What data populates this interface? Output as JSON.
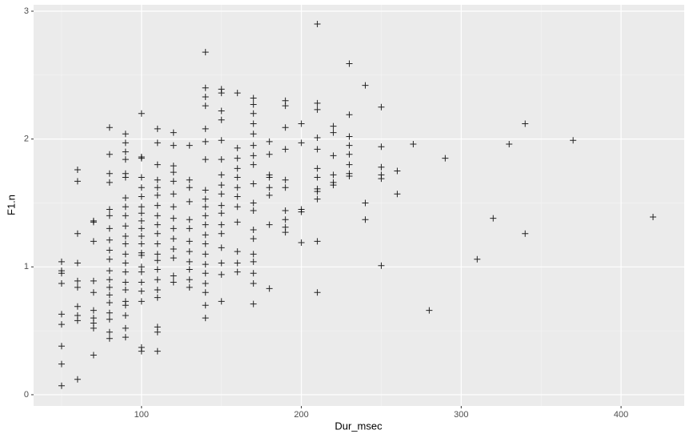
{
  "chart_data": {
    "type": "scatter",
    "x_label": "Dur_msec",
    "y_label": "F1.n",
    "color": "#000000",
    "grid": true,
    "xlim": [
      32.5,
      439.5
    ],
    "ylim": [
      -0.088,
      3.05
    ],
    "xticks": [
      100,
      200,
      300,
      400
    ],
    "yticks": [
      0,
      1,
      2,
      3
    ],
    "x_minor_ticks": [
      50,
      150,
      250,
      350
    ],
    "y_minor_ticks": [
      0.5,
      1.5,
      2.5
    ],
    "x": [
      50,
      50,
      50,
      50,
      50,
      50,
      50,
      50,
      50,
      60,
      60,
      60,
      60,
      60,
      60,
      60,
      60,
      60,
      60,
      70,
      70,
      70,
      70,
      70,
      70,
      70,
      70,
      70,
      70,
      80,
      80,
      80,
      80,
      80,
      80,
      80,
      80,
      80,
      80,
      80,
      80,
      80,
      80,
      80,
      80,
      80,
      80,
      80,
      90,
      90,
      90,
      90,
      90,
      90,
      90,
      90,
      90,
      90,
      90,
      90,
      90,
      90,
      90,
      90,
      90,
      90,
      90,
      90,
      90,
      90,
      100,
      100,
      100,
      100,
      100,
      100,
      100,
      100,
      100,
      100,
      100,
      100,
      100,
      100,
      100,
      100,
      100,
      100,
      100,
      100,
      100,
      110,
      110,
      110,
      110,
      110,
      110,
      110,
      110,
      110,
      110,
      110,
      110,
      110,
      110,
      110,
      110,
      110,
      110,
      110,
      110,
      120,
      120,
      120,
      120,
      120,
      120,
      120,
      120,
      120,
      120,
      120,
      120,
      120,
      120,
      130,
      130,
      130,
      130,
      130,
      130,
      130,
      130,
      130,
      130,
      130,
      130,
      140,
      140,
      140,
      140,
      140,
      140,
      140,
      140,
      140,
      140,
      140,
      140,
      140,
      140,
      140,
      140,
      140,
      140,
      140,
      140,
      140,
      150,
      150,
      150,
      150,
      150,
      150,
      150,
      150,
      150,
      150,
      150,
      150,
      150,
      150,
      150,
      150,
      150,
      160,
      160,
      160,
      160,
      160,
      160,
      160,
      160,
      160,
      160,
      160,
      160,
      170,
      170,
      170,
      170,
      170,
      170,
      170,
      170,
      170,
      170,
      170,
      170,
      170,
      170,
      170,
      170,
      170,
      170,
      180,
      180,
      180,
      180,
      180,
      180,
      180,
      180,
      190,
      190,
      190,
      190,
      190,
      190,
      190,
      190,
      190,
      190,
      200,
      200,
      200,
      200,
      200,
      210,
      210,
      210,
      210,
      210,
      210,
      210,
      210,
      210,
      210,
      210,
      210,
      220,
      220,
      220,
      220,
      220,
      220,
      230,
      230,
      230,
      230,
      230,
      230,
      230,
      230,
      240,
      240,
      240,
      250,
      250,
      250,
      250,
      250,
      250,
      260,
      260,
      270,
      280,
      290,
      310,
      320,
      330,
      340,
      340,
      370,
      420
    ],
    "values": [
      1.04,
      0.97,
      0.95,
      0.87,
      0.63,
      0.55,
      0.38,
      0.24,
      0.07,
      1.76,
      1.67,
      1.26,
      1.03,
      0.89,
      0.84,
      0.69,
      0.62,
      0.58,
      0.12,
      1.36,
      1.35,
      1.2,
      0.89,
      0.8,
      0.66,
      0.6,
      0.56,
      0.52,
      0.31,
      2.09,
      1.88,
      1.73,
      1.66,
      1.45,
      1.4,
      1.3,
      1.21,
      1.13,
      1.06,
      0.97,
      0.9,
      0.84,
      0.78,
      0.72,
      0.64,
      0.59,
      0.49,
      0.44,
      2.04,
      1.97,
      1.9,
      1.84,
      1.73,
      1.7,
      1.54,
      1.47,
      1.4,
      1.32,
      1.24,
      1.18,
      1.1,
      1.03,
      0.96,
      0.88,
      0.82,
      0.73,
      0.7,
      0.62,
      0.52,
      0.45,
      2.2,
      1.86,
      1.85,
      1.7,
      1.62,
      1.55,
      1.47,
      1.42,
      1.36,
      1.3,
      1.24,
      1.18,
      1.11,
      1.09,
      1.0,
      0.96,
      0.88,
      0.81,
      0.73,
      0.37,
      0.34,
      2.08,
      1.97,
      1.8,
      1.68,
      1.62,
      1.56,
      1.48,
      1.4,
      1.33,
      1.26,
      1.18,
      1.1,
      1.05,
      0.98,
      0.9,
      0.82,
      0.76,
      0.53,
      0.49,
      0.34,
      2.05,
      1.95,
      1.79,
      1.74,
      1.67,
      1.57,
      1.47,
      1.38,
      1.3,
      1.22,
      1.14,
      1.07,
      0.93,
      0.88,
      1.95,
      1.68,
      1.62,
      1.51,
      1.37,
      1.3,
      1.2,
      1.12,
      1.04,
      0.98,
      0.9,
      0.84,
      2.68,
      2.4,
      2.33,
      2.26,
      2.08,
      1.98,
      1.84,
      1.6,
      1.53,
      1.47,
      1.4,
      1.33,
      1.25,
      1.18,
      1.1,
      1.02,
      0.95,
      0.87,
      0.8,
      0.7,
      0.6,
      2.39,
      2.36,
      2.22,
      2.15,
      1.99,
      1.84,
      1.72,
      1.64,
      1.57,
      1.48,
      1.42,
      1.33,
      1.26,
      1.15,
      1.03,
      0.94,
      0.73,
      2.36,
      1.93,
      1.85,
      1.77,
      1.7,
      1.62,
      1.55,
      1.47,
      1.35,
      1.12,
      1.03,
      0.96,
      2.32,
      2.27,
      2.2,
      2.12,
      2.04,
      1.95,
      1.87,
      1.8,
      1.65,
      1.5,
      1.44,
      1.29,
      1.22,
      1.1,
      1.04,
      0.95,
      0.87,
      0.71,
      1.98,
      1.88,
      1.72,
      1.7,
      1.62,
      1.56,
      1.33,
      0.83,
      2.3,
      2.26,
      2.09,
      1.92,
      1.68,
      1.62,
      1.44,
      1.37,
      1.31,
      1.27,
      2.12,
      1.97,
      1.45,
      1.43,
      1.19,
      2.9,
      2.28,
      2.23,
      2.01,
      1.92,
      1.77,
      1.7,
      1.61,
      1.59,
      1.53,
      1.2,
      0.8,
      2.1,
      2.05,
      1.87,
      1.72,
      1.66,
      1.64,
      2.59,
      2.19,
      2.02,
      1.95,
      1.88,
      1.8,
      1.73,
      1.71,
      2.42,
      1.5,
      1.37,
      2.25,
      1.94,
      1.78,
      1.72,
      1.69,
      1.01,
      1.75,
      1.57,
      1.96,
      0.66,
      1.85,
      1.06,
      1.38,
      1.96,
      2.12,
      1.26,
      1.99,
      1.39
    ]
  }
}
